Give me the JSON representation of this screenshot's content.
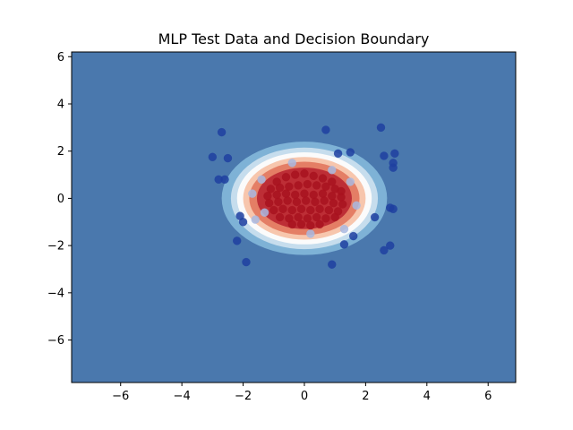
{
  "chart_data": {
    "type": "scatter",
    "title": "MLP Test Data and Decision Boundary",
    "xlabel": "",
    "ylabel": "",
    "xlim": [
      -7.6,
      6.9
    ],
    "ylim": [
      -7.8,
      6.2
    ],
    "xticks": [
      -6,
      -4,
      -2,
      0,
      2,
      4,
      6
    ],
    "yticks": [
      -6,
      -4,
      -2,
      0,
      2,
      4,
      6
    ],
    "xtick_labels": [
      "−6",
      "−4",
      "−2",
      "0",
      "2",
      "4",
      "6"
    ],
    "ytick_labels": [
      "−6",
      "−4",
      "−2",
      "0",
      "2",
      "4",
      "6"
    ],
    "grid": false,
    "decision_boundary": {
      "background_color": "#4a78ad",
      "contour_levels": [
        {
          "level": 0.15,
          "rx": 2.7,
          "ry": 2.4,
          "color": "#7eb2d6"
        },
        {
          "level": 0.3,
          "rx": 2.4,
          "ry": 2.15,
          "color": "#c6dded"
        },
        {
          "level": 0.45,
          "rx": 2.2,
          "ry": 1.95,
          "color": "#fbfbfb"
        },
        {
          "level": 0.6,
          "rx": 2.0,
          "ry": 1.75,
          "color": "#f7c6ad"
        },
        {
          "level": 0.75,
          "rx": 1.8,
          "ry": 1.55,
          "color": "#e47e65"
        },
        {
          "level": 0.9,
          "rx": 1.55,
          "ry": 1.3,
          "color": "#bd2e36"
        }
      ]
    },
    "series": [
      {
        "class": 0,
        "color": "#1e40a0",
        "points": [
          [
            -2.7,
            2.8
          ],
          [
            -2.5,
            1.7
          ],
          [
            -3.0,
            1.75
          ],
          [
            -2.8,
            0.8
          ],
          [
            -2.6,
            0.8
          ],
          [
            0.7,
            2.9
          ],
          [
            1.1,
            1.9
          ],
          [
            1.5,
            1.95
          ],
          [
            2.5,
            3.0
          ],
          [
            2.6,
            1.8
          ],
          [
            2.95,
            1.9
          ],
          [
            2.9,
            1.5
          ],
          [
            2.9,
            1.3
          ],
          [
            2.8,
            -0.4
          ],
          [
            2.9,
            -0.45
          ],
          [
            2.3,
            -0.8
          ],
          [
            2.8,
            -2.0
          ],
          [
            2.6,
            -2.2
          ],
          [
            -2.1,
            -0.75
          ],
          [
            -2.0,
            -1.0
          ],
          [
            -2.2,
            -1.8
          ],
          [
            -1.9,
            -2.7
          ],
          [
            1.3,
            -1.95
          ],
          [
            0.9,
            -2.8
          ],
          [
            1.6,
            -1.6
          ]
        ]
      },
      {
        "class": 1,
        "color": "#a8121e",
        "points": [
          [
            -0.9,
            0.7
          ],
          [
            -0.6,
            0.9
          ],
          [
            -0.3,
            1.0
          ],
          [
            0.0,
            1.05
          ],
          [
            0.3,
            0.95
          ],
          [
            0.6,
            0.85
          ],
          [
            0.9,
            0.7
          ],
          [
            -1.1,
            0.4
          ],
          [
            -0.8,
            0.45
          ],
          [
            -0.5,
            0.5
          ],
          [
            -0.2,
            0.55
          ],
          [
            0.1,
            0.6
          ],
          [
            0.4,
            0.55
          ],
          [
            0.7,
            0.5
          ],
          [
            1.0,
            0.4
          ],
          [
            1.2,
            0.3
          ],
          [
            -1.2,
            0.1
          ],
          [
            -0.9,
            0.15
          ],
          [
            -0.6,
            0.2
          ],
          [
            -0.3,
            0.15
          ],
          [
            0.0,
            0.2
          ],
          [
            0.3,
            0.15
          ],
          [
            0.6,
            0.2
          ],
          [
            0.9,
            0.1
          ],
          [
            1.2,
            0.05
          ],
          [
            -1.15,
            -0.2
          ],
          [
            -0.85,
            -0.15
          ],
          [
            -0.55,
            -0.1
          ],
          [
            -0.25,
            -0.15
          ],
          [
            0.05,
            -0.1
          ],
          [
            0.35,
            -0.15
          ],
          [
            0.65,
            -0.1
          ],
          [
            0.95,
            -0.2
          ],
          [
            1.25,
            -0.25
          ],
          [
            -1.0,
            -0.5
          ],
          [
            -0.7,
            -0.45
          ],
          [
            -0.4,
            -0.5
          ],
          [
            -0.1,
            -0.45
          ],
          [
            0.2,
            -0.5
          ],
          [
            0.5,
            -0.45
          ],
          [
            0.8,
            -0.5
          ],
          [
            1.1,
            -0.55
          ],
          [
            -0.8,
            -0.8
          ],
          [
            -0.5,
            -0.85
          ],
          [
            -0.2,
            -0.8
          ],
          [
            0.1,
            -0.85
          ],
          [
            0.4,
            -0.8
          ],
          [
            0.7,
            -0.85
          ],
          [
            1.0,
            -0.8
          ],
          [
            -0.4,
            -1.1
          ],
          [
            -0.1,
            -1.1
          ],
          [
            0.2,
            -1.15
          ],
          [
            0.5,
            -1.1
          ]
        ]
      },
      {
        "class": "near-boundary",
        "color": "#a9b8e0",
        "points": [
          [
            -1.7,
            0.2
          ],
          [
            -1.6,
            -0.9
          ],
          [
            -1.3,
            -0.6
          ],
          [
            -0.4,
            1.5
          ],
          [
            1.5,
            0.7
          ],
          [
            1.7,
            -0.3
          ],
          [
            1.3,
            -1.3
          ],
          [
            0.2,
            -1.5
          ],
          [
            -1.4,
            0.8
          ],
          [
            0.9,
            1.2
          ]
        ]
      }
    ]
  }
}
